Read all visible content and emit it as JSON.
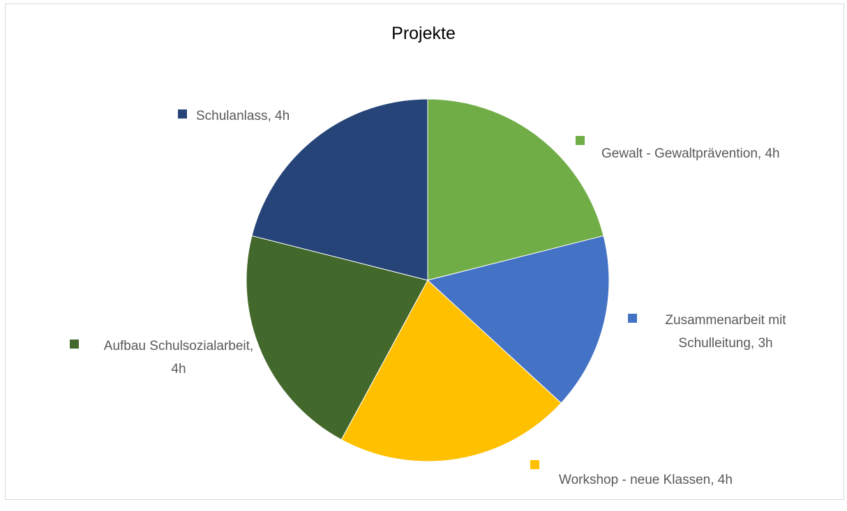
{
  "chart_data": {
    "type": "pie",
    "title": "Projekte",
    "values": [
      4,
      3,
      4,
      4,
      4
    ],
    "value_labels": [
      "Gewalt - Gewaltprävention, 4h",
      "Zusammenarbeit mit Schulleitung, 3h",
      "Workshop - neue Klassen, 4h",
      "Aufbau Schulsozialarbeit, 4h",
      "Schulanlass, 4h"
    ],
    "colors": [
      "#70ad47",
      "#4472c4",
      "#ffc000",
      "#43682b",
      "#264478"
    ]
  }
}
